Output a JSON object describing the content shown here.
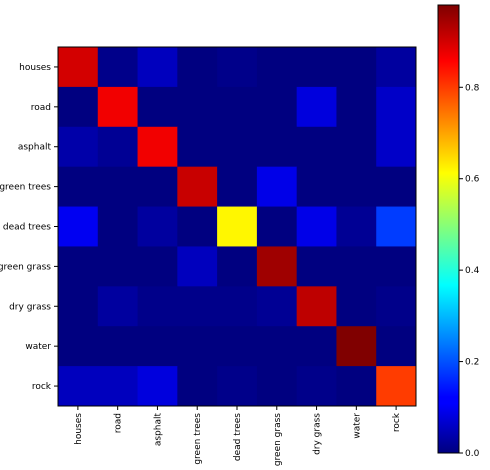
{
  "chart_data": {
    "type": "heatmap",
    "row_labels": [
      "houses",
      "road",
      "asphalt",
      "green trees",
      "dead trees",
      "green grass",
      "dry grass",
      "water",
      "rock"
    ],
    "col_labels": [
      "houses",
      "road",
      "asphalt",
      "green trees",
      "dead trees",
      "green grass",
      "dry grass",
      "water",
      "rock"
    ],
    "values": [
      [
        0.9,
        0.01,
        0.06,
        0.0,
        0.01,
        0.0,
        0.0,
        0.0,
        0.03
      ],
      [
        0.0,
        0.87,
        0.0,
        0.0,
        0.0,
        0.0,
        0.09,
        0.0,
        0.07
      ],
      [
        0.04,
        0.02,
        0.87,
        0.0,
        0.0,
        0.0,
        0.0,
        0.0,
        0.07
      ],
      [
        0.0,
        0.0,
        0.0,
        0.91,
        0.0,
        0.1,
        0.0,
        0.0,
        0.0
      ],
      [
        0.11,
        0.0,
        0.03,
        0.0,
        0.62,
        0.0,
        0.1,
        0.02,
        0.18
      ],
      [
        0.0,
        0.0,
        0.0,
        0.06,
        0.0,
        0.95,
        0.0,
        0.0,
        0.0
      ],
      [
        0.0,
        0.03,
        0.01,
        0.01,
        0.01,
        0.02,
        0.92,
        0.0,
        0.01
      ],
      [
        0.0,
        0.0,
        0.0,
        0.0,
        0.0,
        0.0,
        0.0,
        0.99,
        0.0
      ],
      [
        0.06,
        0.06,
        0.09,
        0.0,
        0.01,
        0.0,
        0.01,
        0.0,
        0.8
      ]
    ],
    "colormap": "jet",
    "vmin": 0.0,
    "vmax": 0.98,
    "colorbar_ticks": [
      "0.0",
      "0.2",
      "0.4",
      "0.6",
      "0.8"
    ],
    "grid": false,
    "x_tick_rotation_deg": 90
  }
}
